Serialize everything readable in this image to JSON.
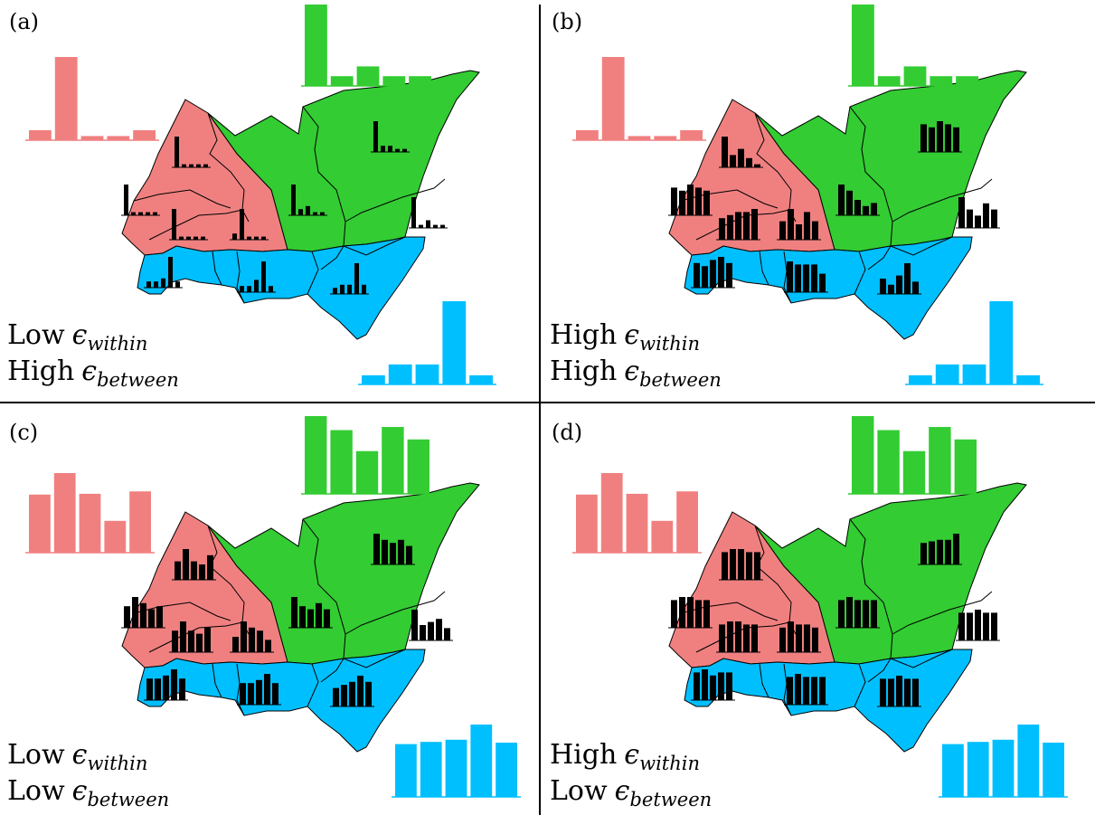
{
  "colors": {
    "red": "#f08080",
    "green": "#33cc33",
    "blue": "#00bfff",
    "bars": "#000000",
    "divider": "#000000"
  },
  "panels": [
    {
      "id": "a",
      "label": "(a)",
      "line1_prefix": "Low",
      "line1_sym": "ϵ",
      "line1_sub": "within",
      "line2_prefix": "High",
      "line2_sym": "ϵ",
      "line2_sub": "between",
      "hist": {
        "red": [
          0.12,
          1.0,
          0.05,
          0.05,
          0.12
        ],
        "green": [
          1.0,
          0.12,
          0.24,
          0.12,
          0.12
        ],
        "blue": [
          0.11,
          0.24,
          0.24,
          1.0,
          0.11
        ]
      },
      "minis": {
        "R1": [
          1.0,
          0.1,
          0.1,
          0.1,
          0.1
        ],
        "R2": [
          1.0,
          0.1,
          0.1,
          0.1,
          0.1
        ],
        "R3": [
          1.0,
          0.1,
          0.1,
          0.1,
          0.1
        ],
        "R4": [
          0.2,
          1.0,
          0.1,
          0.1,
          0.1
        ],
        "G1": [
          1.0,
          0.2,
          0.3,
          0.1,
          0.1
        ],
        "G2": [
          1.0,
          0.2,
          0.2,
          0.1,
          0.1
        ],
        "G3": [
          1.0,
          0.1,
          0.25,
          0.1,
          0.1
        ],
        "B1": [
          0.2,
          0.2,
          0.3,
          1.0,
          0.2
        ],
        "B2": [
          0.2,
          0.2,
          0.4,
          1.0,
          0.2
        ],
        "B3": [
          0.2,
          0.3,
          0.3,
          1.0,
          0.3
        ]
      }
    },
    {
      "id": "b",
      "label": "(b)",
      "line1_prefix": "High",
      "line1_sym": "ϵ",
      "line1_sub": "within",
      "line2_prefix": "High",
      "line2_sym": "ϵ",
      "line2_sub": "between",
      "hist": {
        "red": [
          0.12,
          1.0,
          0.05,
          0.05,
          0.12
        ],
        "green": [
          1.0,
          0.12,
          0.24,
          0.12,
          0.12
        ],
        "blue": [
          0.11,
          0.24,
          0.24,
          1.0,
          0.11
        ]
      },
      "minis": {
        "R1": [
          0.9,
          0.8,
          1.0,
          0.9,
          0.8
        ],
        "R2": [
          1.0,
          0.4,
          0.6,
          0.3,
          0.1
        ],
        "R3": [
          0.7,
          0.8,
          0.9,
          0.9,
          1.0
        ],
        "R4": [
          0.6,
          1.0,
          0.5,
          0.9,
          0.6
        ],
        "G1": [
          1.0,
          0.8,
          0.5,
          0.3,
          0.4
        ],
        "G2": [
          0.9,
          0.8,
          1.0,
          0.9,
          0.8
        ],
        "G3": [
          1.0,
          0.6,
          0.4,
          0.8,
          0.6
        ],
        "B1": [
          0.8,
          0.7,
          0.9,
          1.0,
          0.8
        ],
        "B2": [
          1.0,
          0.9,
          0.9,
          0.9,
          0.6
        ],
        "B3": [
          0.5,
          0.3,
          0.6,
          1.0,
          0.4
        ]
      }
    },
    {
      "id": "c",
      "label": "(c)",
      "line1_prefix": "Low",
      "line1_sym": "ϵ",
      "line1_sub": "within",
      "line2_prefix": "Low",
      "line2_sym": "ϵ",
      "line2_sub": "between",
      "hist": {
        "red": [
          0.73,
          1.0,
          0.74,
          0.4,
          0.77
        ],
        "green": [
          1.0,
          0.82,
          0.55,
          0.86,
          0.7
        ],
        "blue": [
          0.73,
          0.76,
          0.79,
          1.0,
          0.75
        ]
      },
      "minis": {
        "R1": [
          0.7,
          1.0,
          0.8,
          0.6,
          0.7
        ],
        "R2": [
          0.6,
          1.0,
          0.6,
          0.5,
          0.8
        ],
        "R3": [
          0.7,
          1.0,
          0.7,
          0.6,
          0.8
        ],
        "R4": [
          0.5,
          1.0,
          0.8,
          0.7,
          0.4
        ],
        "G1": [
          1.0,
          0.7,
          0.6,
          0.8,
          0.6
        ],
        "G2": [
          1.0,
          0.8,
          0.7,
          0.8,
          0.6
        ],
        "G3": [
          1.0,
          0.5,
          0.6,
          0.7,
          0.4
        ],
        "B1": [
          0.7,
          0.7,
          0.8,
          1.0,
          0.7
        ],
        "B2": [
          0.7,
          0.7,
          0.8,
          1.0,
          0.7
        ],
        "B3": [
          0.6,
          0.7,
          0.8,
          1.0,
          0.8
        ]
      }
    },
    {
      "id": "d",
      "label": "(d)",
      "line1_prefix": "High",
      "line1_sym": "ϵ",
      "line1_sub": "within",
      "line2_prefix": "Low",
      "line2_sym": "ϵ",
      "line2_sub": "between",
      "hist": {
        "red": [
          0.73,
          1.0,
          0.74,
          0.4,
          0.77
        ],
        "green": [
          1.0,
          0.82,
          0.55,
          0.86,
          0.7
        ],
        "blue": [
          0.73,
          0.76,
          0.79,
          1.0,
          0.75
        ]
      },
      "minis": {
        "R1": [
          0.9,
          1.0,
          1.0,
          0.9,
          0.9
        ],
        "R2": [
          0.9,
          1.0,
          1.0,
          0.9,
          0.9
        ],
        "R3": [
          0.9,
          1.0,
          1.0,
          0.9,
          0.9
        ],
        "R4": [
          0.8,
          1.0,
          0.9,
          0.9,
          0.8
        ],
        "G1": [
          0.9,
          1.0,
          0.9,
          0.9,
          0.9
        ],
        "G2": [
          0.7,
          0.75,
          0.8,
          0.8,
          1.0
        ],
        "G3": [
          0.9,
          0.9,
          1.0,
          0.9,
          0.9
        ],
        "B1": [
          0.9,
          1.0,
          0.8,
          0.9,
          0.9
        ],
        "B2": [
          0.9,
          1.0,
          0.9,
          0.9,
          0.9
        ],
        "B3": [
          0.9,
          0.9,
          1.0,
          0.9,
          0.9
        ]
      }
    }
  ]
}
